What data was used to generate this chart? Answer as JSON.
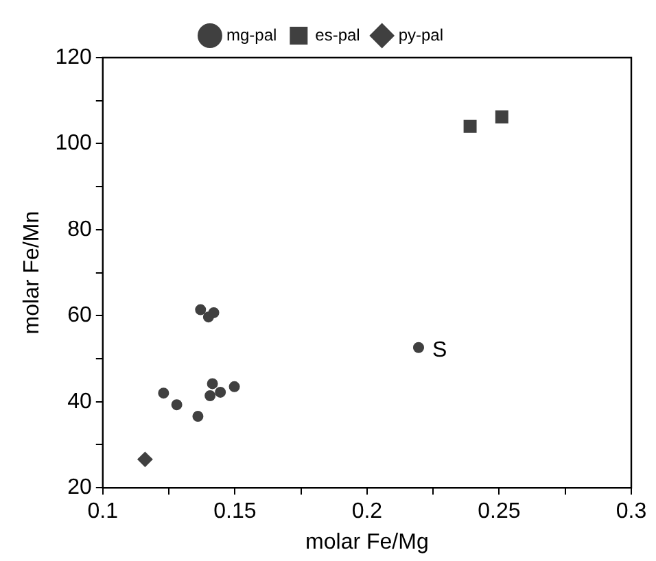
{
  "chart_data": {
    "type": "scatter",
    "xlabel": "molar Fe/Mg",
    "ylabel": "molar Fe/Mn",
    "xlim": [
      0.1,
      0.3
    ],
    "ylim": [
      20,
      120
    ],
    "xticks": [
      0.1,
      {
        "value": 0.125,
        "label": null
      },
      0.15,
      {
        "value": 0.175,
        "label": null
      },
      0.2,
      {
        "value": 0.225,
        "label": null
      },
      0.25,
      {
        "value": 0.275,
        "label": null
      },
      0.3
    ],
    "yticks": [
      20,
      {
        "value": 30,
        "label": null
      },
      40,
      {
        "value": 50,
        "label": null
      },
      60,
      {
        "value": 70,
        "label": null
      },
      80,
      {
        "value": 90,
        "label": null
      },
      100,
      {
        "value": 110,
        "label": null
      },
      120
    ],
    "grid": false,
    "legend": "top",
    "series": [
      {
        "name": "mg-pal",
        "color": "#404040",
        "marker": "circle",
        "x": [
          0.123,
          0.128,
          0.136,
          0.137,
          0.14,
          0.142,
          0.1415,
          0.1406,
          0.1445,
          0.1498,
          0.2195
        ],
        "values": [
          42,
          39.3,
          36.6,
          61.4,
          59.7,
          60.7,
          44.2,
          41.4,
          42.2,
          43.5,
          52.6
        ]
      },
      {
        "name": "es-pal",
        "color": "#404040",
        "marker": "square",
        "x": [
          0.239,
          0.251
        ],
        "values": [
          104,
          106.2
        ]
      },
      {
        "name": "py-pal",
        "color": "#404040",
        "marker": "diamond",
        "x": [
          0.116
        ],
        "values": [
          26.6
        ]
      }
    ],
    "annotations": [
      {
        "text": "S",
        "x": 0.2195,
        "y": 52.6
      }
    ]
  }
}
